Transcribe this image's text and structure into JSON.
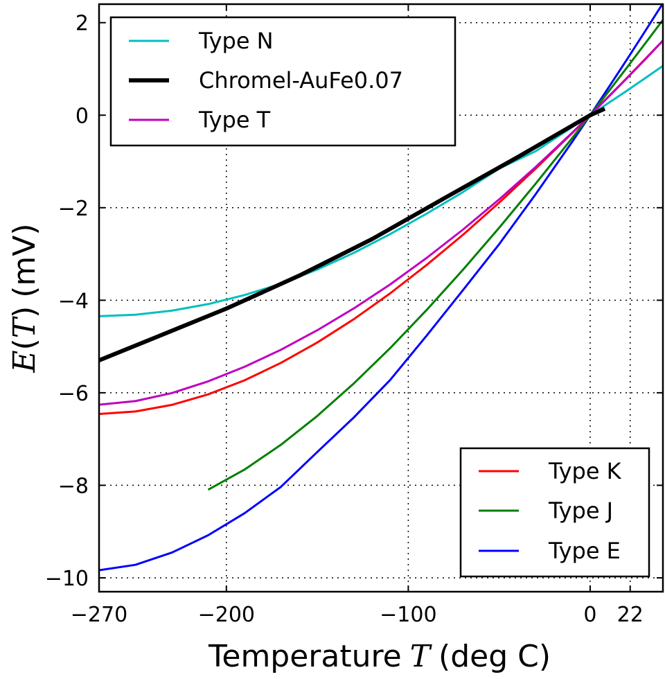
{
  "chart_data": {
    "type": "line",
    "title": "",
    "xlabel": {
      "text": "Temperature",
      "symbol": "T",
      "unit": "(deg C)"
    },
    "ylabel": {
      "func": "E",
      "arg": "T",
      "unit": "(mV)"
    },
    "xlim": [
      -270,
      40
    ],
    "ylim": [
      -10.3,
      2.4
    ],
    "grid": true,
    "x_ticks": [
      -270,
      -200,
      -100,
      0,
      22
    ],
    "x_tick_labels": [
      "−270",
      "−200",
      "−100",
      "0",
      "22"
    ],
    "y_ticks": [
      2,
      0,
      -2,
      -4,
      -6,
      -8,
      -10
    ],
    "y_tick_labels": [
      "2",
      "0",
      "−2",
      "−4",
      "−6",
      "−8",
      "−10"
    ],
    "legends": [
      {
        "placement": "upper-left",
        "entries": [
          "Type N",
          "Chromel-AuFe0.07",
          "Type T"
        ]
      },
      {
        "placement": "lower-right",
        "entries": [
          "Type K",
          "Type J",
          "Type E"
        ]
      }
    ],
    "series": [
      {
        "name": "Type N",
        "color": "#00bfbf",
        "width": 3,
        "x": [
          -270,
          -250,
          -230,
          -210,
          -190,
          -170,
          -150,
          -130,
          -110,
          -90,
          -70,
          -50,
          -30,
          -10,
          0,
          10,
          20,
          30,
          40
        ],
        "y": [
          -4.345,
          -4.313,
          -4.226,
          -4.083,
          -3.887,
          -3.643,
          -3.336,
          -2.976,
          -2.571,
          -2.13,
          -1.663,
          -1.152,
          -0.778,
          -0.26,
          0.0,
          0.261,
          0.525,
          0.793,
          1.065
        ]
      },
      {
        "name": "Chromel-AuFe0.07",
        "color": "#000000",
        "width": 6,
        "x": [
          -270,
          -240,
          -200,
          -160,
          -120,
          -80,
          -40,
          0,
          8
        ],
        "y": [
          -5.3,
          -4.82,
          -4.18,
          -3.47,
          -2.68,
          -1.79,
          -0.91,
          0.0,
          0.14
        ]
      },
      {
        "name": "Type T",
        "color": "#bf00bf",
        "width": 3,
        "x": [
          -270,
          -250,
          -230,
          -210,
          -190,
          -170,
          -150,
          -130,
          -110,
          -90,
          -70,
          -50,
          -30,
          -10,
          0,
          10,
          20,
          30,
          40
        ],
        "y": [
          -6.258,
          -6.18,
          -6.007,
          -5.753,
          -5.439,
          -5.07,
          -4.648,
          -4.177,
          -3.66,
          -3.089,
          -2.475,
          -1.819,
          -1.121,
          -0.383,
          0.0,
          0.391,
          0.79,
          1.196,
          1.612
        ]
      },
      {
        "name": "Type K",
        "color": "#ff0000",
        "width": 3,
        "x": [
          -270,
          -250,
          -230,
          -210,
          -190,
          -170,
          -150,
          -130,
          -110,
          -90,
          -70,
          -50,
          -30,
          -10,
          0,
          10,
          20,
          30,
          40
        ],
        "y": [
          -6.458,
          -6.404,
          -6.262,
          -6.035,
          -5.73,
          -5.354,
          -4.913,
          -4.411,
          -3.852,
          -3.242,
          -2.587,
          -1.889,
          -1.156,
          -0.392,
          0.0,
          0.397,
          0.798,
          1.203,
          1.612
        ]
      },
      {
        "name": "Type J",
        "color": "#007f00",
        "width": 3,
        "x": [
          -210,
          -190,
          -170,
          -150,
          -130,
          -110,
          -90,
          -70,
          -50,
          -30,
          -10,
          0,
          10,
          20,
          30,
          40
        ],
        "y": [
          -8.095,
          -7.659,
          -7.123,
          -6.5,
          -5.801,
          -5.037,
          -4.215,
          -3.344,
          -2.431,
          -1.482,
          -0.501,
          0.0,
          0.507,
          1.019,
          1.537,
          2.059
        ]
      },
      {
        "name": "Type E",
        "color": "#0000ff",
        "width": 3,
        "x": [
          -270,
          -250,
          -230,
          -210,
          -190,
          -170,
          -150,
          -130,
          -110,
          -90,
          -70,
          -50,
          -30,
          -10,
          0,
          10,
          20,
          30,
          40
        ],
        "y": [
          -9.835,
          -9.719,
          -9.455,
          -9.079,
          -8.603,
          -8.033,
          -7.279,
          -6.537,
          -5.726,
          -4.771,
          -3.784,
          -2.787,
          -1.709,
          -0.582,
          0.0,
          0.591,
          1.192,
          1.801,
          2.42
        ]
      }
    ]
  }
}
